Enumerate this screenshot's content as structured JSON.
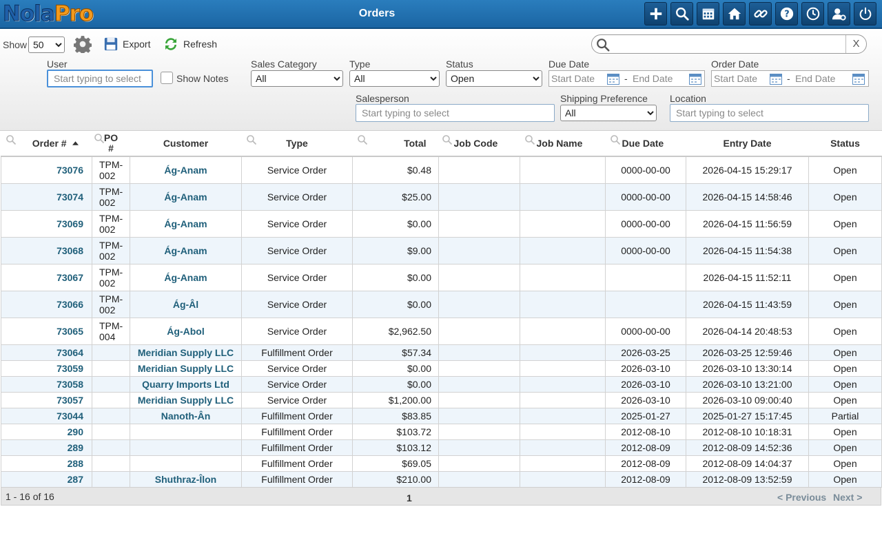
{
  "app": {
    "logo_part1": "Nola",
    "logo_part2": "Pro",
    "title": "Orders"
  },
  "header_icons": [
    "plus-icon",
    "search-icon",
    "calendar-icon",
    "home-icon",
    "link-icon",
    "help-icon",
    "clock-icon",
    "user-settings-icon",
    "power-icon"
  ],
  "toolbar": {
    "show_label": "Show",
    "show_value": "50",
    "export_label": "Export",
    "refresh_label": "Refresh",
    "search_clear": "X",
    "user_label": "User",
    "user_placeholder": "Start typing to select",
    "show_notes_label": "Show Notes",
    "sales_category_label": "Sales Category",
    "sales_category_value": "All",
    "type_label": "Type",
    "type_value": "All",
    "status_label": "Status",
    "status_value": "Open",
    "due_date_label": "Due Date",
    "order_date_label": "Order Date",
    "start_date_placeholder": "Start Date",
    "end_date_placeholder": "End Date",
    "date_separator": "-",
    "salesperson_label": "Salesperson",
    "salesperson_placeholder": "Start typing to select",
    "shipping_label": "Shipping Preference",
    "shipping_value": "All",
    "location_label": "Location",
    "location_placeholder": "Start typing to select"
  },
  "table": {
    "headers": {
      "order": "Order #",
      "po_line1": "PO",
      "po_line2": "#",
      "customer": "Customer",
      "type": "Type",
      "total": "Total",
      "job_code": "Job Code",
      "job_name": "Job Name",
      "due_date": "Due Date",
      "entry_date": "Entry Date",
      "status": "Status"
    },
    "rows": [
      {
        "order": "73076",
        "po1": "TPM-",
        "po2": "002",
        "customer": "Ág-Anam",
        "type": "Service Order",
        "total": "$0.48",
        "job_code": "",
        "job_name": "",
        "due": "0000-00-00",
        "entry": "2026-04-15 15:29:17",
        "status": "Open"
      },
      {
        "order": "73074",
        "po1": "TPM-",
        "po2": "002",
        "customer": "Ág-Anam",
        "type": "Service Order",
        "total": "$25.00",
        "job_code": "",
        "job_name": "",
        "due": "0000-00-00",
        "entry": "2026-04-15 14:58:46",
        "status": "Open"
      },
      {
        "order": "73069",
        "po1": "TPM-",
        "po2": "002",
        "customer": "Ág-Anam",
        "type": "Service Order",
        "total": "$0.00",
        "job_code": "",
        "job_name": "",
        "due": "0000-00-00",
        "entry": "2026-04-15 11:56:59",
        "status": "Open"
      },
      {
        "order": "73068",
        "po1": "TPM-",
        "po2": "002",
        "customer": "Ág-Anam",
        "type": "Service Order",
        "total": "$9.00",
        "job_code": "",
        "job_name": "",
        "due": "0000-00-00",
        "entry": "2026-04-15 11:54:38",
        "status": "Open"
      },
      {
        "order": "73067",
        "po1": "TPM-",
        "po2": "002",
        "customer": "Ág-Anam",
        "type": "Service Order",
        "total": "$0.00",
        "job_code": "",
        "job_name": "",
        "due": "",
        "entry": "2026-04-15 11:52:11",
        "status": "Open"
      },
      {
        "order": "73066",
        "po1": "TPM-",
        "po2": "002",
        "customer": "Ág-Âl",
        "type": "Service Order",
        "total": "$0.00",
        "job_code": "",
        "job_name": "",
        "due": "",
        "entry": "2026-04-15 11:43:59",
        "status": "Open"
      },
      {
        "order": "73065",
        "po1": "TPM-",
        "po2": "004",
        "customer": "Ág-Abol",
        "type": "Service Order",
        "total": "$2,962.50",
        "job_code": "",
        "job_name": "",
        "due": "0000-00-00",
        "entry": "2026-04-14 20:48:53",
        "status": "Open"
      },
      {
        "order": "73064",
        "po1": "",
        "po2": "",
        "customer": "Meridian Supply LLC",
        "type": "Fulfillment Order",
        "total": "$57.34",
        "job_code": "",
        "job_name": "",
        "due": "2026-03-25",
        "entry": "2026-03-25 12:59:46",
        "status": "Open"
      },
      {
        "order": "73059",
        "po1": "",
        "po2": "",
        "customer": "Meridian Supply LLC",
        "type": "Service Order",
        "total": "$0.00",
        "job_code": "",
        "job_name": "",
        "due": "2026-03-10",
        "entry": "2026-03-10 13:30:14",
        "status": "Open"
      },
      {
        "order": "73058",
        "po1": "",
        "po2": "",
        "customer": "Quarry Imports Ltd",
        "type": "Service Order",
        "total": "$0.00",
        "job_code": "",
        "job_name": "",
        "due": "2026-03-10",
        "entry": "2026-03-10 13:21:00",
        "status": "Open"
      },
      {
        "order": "73057",
        "po1": "",
        "po2": "",
        "customer": "Meridian Supply LLC",
        "type": "Service Order",
        "total": "$1,200.00",
        "job_code": "",
        "job_name": "",
        "due": "2026-03-10",
        "entry": "2026-03-10 09:00:40",
        "status": "Open"
      },
      {
        "order": "73044",
        "po1": "",
        "po2": "",
        "customer": "Nanoth-Ân",
        "type": "Fulfillment Order",
        "total": "$83.85",
        "job_code": "",
        "job_name": "",
        "due": "2025-01-27",
        "entry": "2025-01-27 15:17:45",
        "status": "Partial"
      },
      {
        "order": "290",
        "po1": "",
        "po2": "",
        "customer": "",
        "type": "Fulfillment Order",
        "total": "$103.72",
        "job_code": "",
        "job_name": "",
        "due": "2012-08-10",
        "entry": "2012-08-10 10:18:31",
        "status": "Open"
      },
      {
        "order": "289",
        "po1": "",
        "po2": "",
        "customer": "",
        "type": "Fulfillment Order",
        "total": "$103.12",
        "job_code": "",
        "job_name": "",
        "due": "2012-08-09",
        "entry": "2012-08-09 14:52:36",
        "status": "Open"
      },
      {
        "order": "288",
        "po1": "",
        "po2": "",
        "customer": "",
        "type": "Fulfillment Order",
        "total": "$69.05",
        "job_code": "",
        "job_name": "",
        "due": "2012-08-09",
        "entry": "2012-08-09 14:04:37",
        "status": "Open"
      },
      {
        "order": "287",
        "po1": "",
        "po2": "",
        "customer": "Shuthraz-Îlon",
        "type": "Fulfillment Order",
        "total": "$210.00",
        "job_code": "",
        "job_name": "",
        "due": "2012-08-09",
        "entry": "2012-08-09 13:52:59",
        "status": "Open"
      }
    ]
  },
  "pager": {
    "count": "1 - 16 of 16",
    "page": "1",
    "previous": "< Previous",
    "next": "Next >"
  }
}
